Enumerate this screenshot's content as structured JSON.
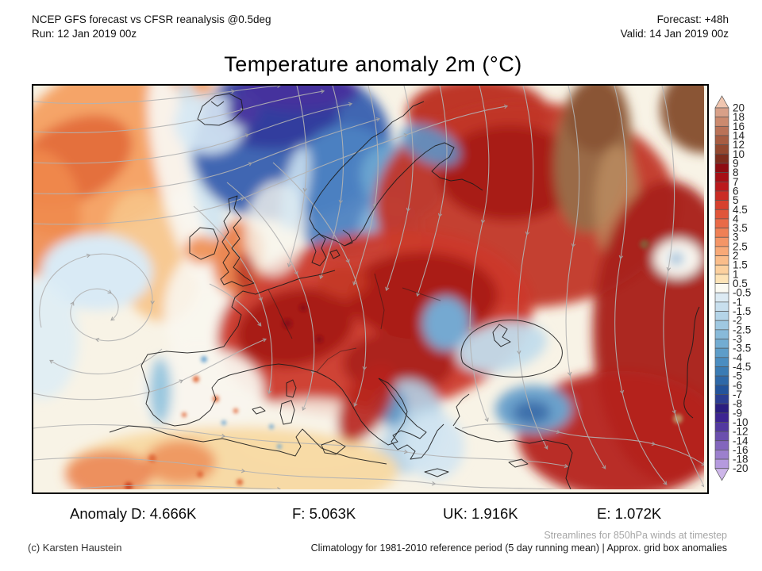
{
  "header": {
    "left_line1": "NCEP GFS forecast vs CFSR reanalysis @0.5deg",
    "left_line2": "Run: 12 Jan 2019 00z",
    "right_line1": "Forecast: +48h",
    "right_line2": "Valid: 14 Jan 2019 00z"
  },
  "title": "Temperature anomaly 2m (°C)",
  "map": {
    "description": "Filled 2m temperature anomaly contours over Europe and the North Atlantic with 850hPa wind streamlines"
  },
  "colorbar": {
    "labels": [
      "20",
      "18",
      "16",
      "14",
      "12",
      "10",
      "9",
      "8",
      "7",
      "6",
      "5",
      "4.5",
      "4",
      "3.5",
      "3",
      "2.5",
      "2",
      "1.5",
      "1",
      "0.5",
      "-0.5",
      "-1",
      "-1.5",
      "-2",
      "-2.5",
      "-3",
      "-3.5",
      "-4",
      "-4.5",
      "-5",
      "-6",
      "-7",
      "-8",
      "-9",
      "-10",
      "-12",
      "-14",
      "-16",
      "-18",
      "-20"
    ],
    "colors_top_to_bottom": [
      "#f0c6b0",
      "#d8a088",
      "#cc8a6e",
      "#ba7257",
      "#a75c41",
      "#93482f",
      "#7d2d1d",
      "#8e0c12",
      "#a60f16",
      "#bb191c",
      "#ca2c24",
      "#d6402e",
      "#e0553a",
      "#e96a47",
      "#ef8055",
      "#f49566",
      "#f8a977",
      "#fabd8a",
      "#fcd09e",
      "#fde3b6",
      "#fbfaf2",
      "#dceaf3",
      "#c8dfee",
      "#b4d4e8",
      "#9fc8e1",
      "#88bad9",
      "#72acd2",
      "#5d9dc9",
      "#4a8dc1",
      "#3a7bb4",
      "#2e68a8",
      "#23539b",
      "#2b3d92",
      "#2a1d80",
      "#3d2492",
      "#5339a0",
      "#6b4fae",
      "#8366bd",
      "#9c80cd",
      "#b59ade",
      "#cdb6e9"
    ]
  },
  "stats": {
    "items": [
      "Anomaly D: 4.666K",
      "F: 5.063K",
      "UK: 1.916K",
      "E: 1.072K"
    ]
  },
  "footer": {
    "streamlines_note": "Streamlines for 850hPa winds at timestep",
    "credit": "(c) Karsten Haustein",
    "climatology_note": "Climatology for 1981-2010 reference period (5 day running mean) | Approx. grid box anomalies"
  }
}
